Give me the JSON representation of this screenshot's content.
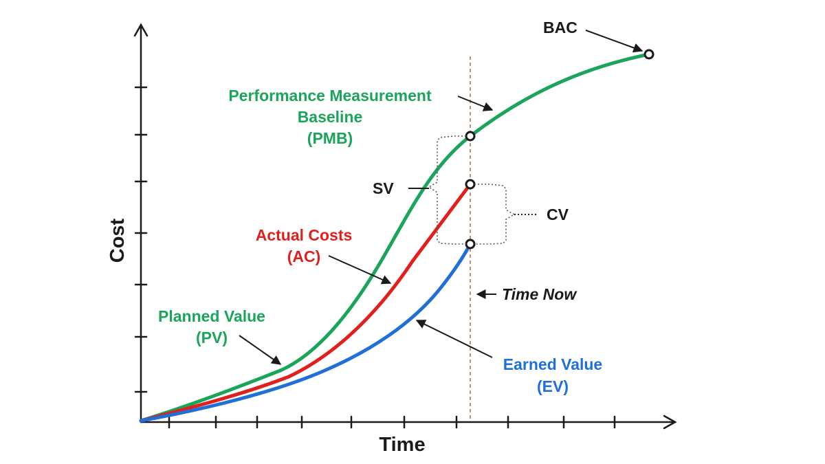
{
  "diagram": {
    "axes": {
      "x_title": "Time",
      "y_title": "Cost"
    },
    "labels": {
      "bac": "BAC",
      "pmb_line1": "Performance Measurement",
      "pmb_line2": "Baseline",
      "pmb_line3": "(PMB)",
      "sv": "SV",
      "cv": "CV",
      "ac_line1": "Actual Costs",
      "ac_line2": "(AC)",
      "time_now": "Time Now",
      "pv_line1": "Planned Value",
      "pv_line2": "(PV)",
      "ev_line1": "Earned Value",
      "ev_line2": "(EV)"
    },
    "colors": {
      "pv": "#1aa55a",
      "ac": "#e0201c",
      "ev": "#1f6fd6",
      "axis": "#1a1a1a",
      "time_now_line": "#a0714a"
    }
  }
}
